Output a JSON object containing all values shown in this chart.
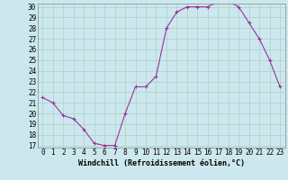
{
  "x": [
    0,
    1,
    2,
    3,
    4,
    5,
    6,
    7,
    8,
    9,
    10,
    11,
    12,
    13,
    14,
    15,
    16,
    17,
    18,
    19,
    20,
    21,
    22,
    23
  ],
  "y": [
    21.5,
    21.0,
    19.8,
    19.5,
    18.5,
    17.2,
    17.0,
    17.0,
    20.0,
    22.5,
    22.5,
    23.5,
    28.0,
    29.5,
    30.0,
    30.0,
    30.0,
    30.5,
    30.5,
    30.0,
    28.5,
    27.0,
    25.0,
    22.5
  ],
  "ylim_min": 17,
  "ylim_max": 30,
  "yticks": [
    17,
    18,
    19,
    20,
    21,
    22,
    23,
    24,
    25,
    26,
    27,
    28,
    29,
    30
  ],
  "xlabel": "Windchill (Refroidissement éolien,°C)",
  "bg_color": "#cce8ee",
  "grid_color": "#b0d4cc",
  "line_color": "#993399",
  "tick_fontsize": 5.5,
  "label_fontsize": 6.0
}
